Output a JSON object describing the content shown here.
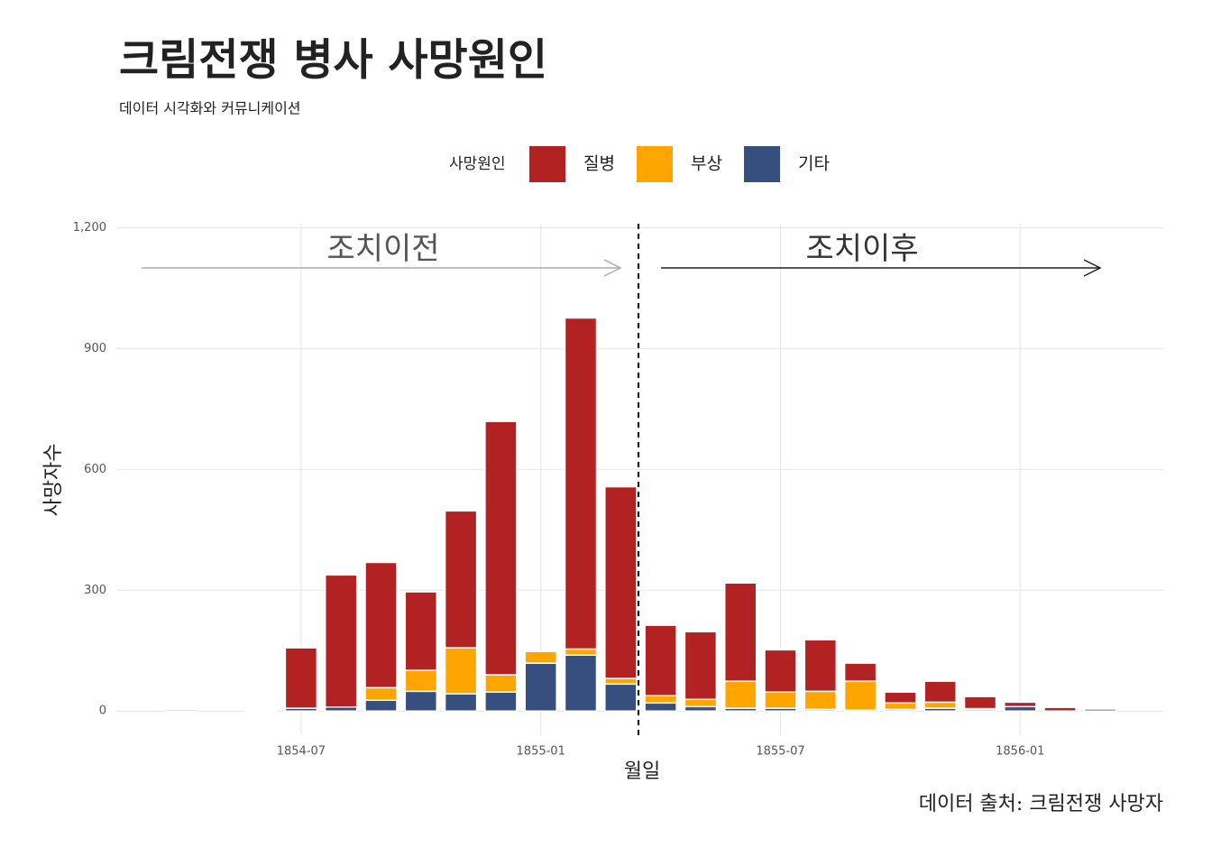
{
  "chart_data": {
    "type": "stacked_bar",
    "title": "크림전쟁 병사 사망원인",
    "subtitle": "데이터 시각화와 커뮤니케이션",
    "legend_title": "사망원인",
    "x_label": "월일",
    "y_label": "사망자수",
    "caption": "데이터 출처: 크림전쟁 사망자",
    "annotations": [
      "조치이전",
      "조치이후"
    ],
    "categories": [
      "1854-04",
      "1854-05",
      "1854-06",
      "1854-07",
      "1854-08",
      "1854-09",
      "1854-10",
      "1854-11",
      "1854-12",
      "1855-01",
      "1855-02",
      "1855-03",
      "1855-04",
      "1855-05",
      "1855-06",
      "1855-07",
      "1855-08",
      "1855-09",
      "1855-10",
      "1855-11",
      "1855-12",
      "1856-01",
      "1856-02",
      "1856-03"
    ],
    "series": [
      {
        "name": "질병",
        "color": "#b22222",
        "values": [
          1,
          0,
          0,
          150,
          328,
          311,
          195,
          340,
          629,
          0,
          822,
          476,
          175,
          168,
          244,
          105,
          128,
          45,
          27,
          52,
          30,
          11,
          9,
          0
        ]
      },
      {
        "name": "부상",
        "color": "#ffa500",
        "values": [
          0,
          0,
          0,
          0,
          0,
          31,
          52,
          114,
          43,
          29,
          15,
          14,
          18,
          18,
          67,
          40,
          45,
          72,
          16,
          15,
          2,
          0,
          0,
          0
        ]
      },
      {
        "name": "기타",
        "color": "#374f7f",
        "values": [
          4,
          0,
          2,
          7,
          10,
          27,
          49,
          43,
          47,
          119,
          139,
          67,
          20,
          11,
          7,
          7,
          4,
          2,
          4,
          7,
          4,
          11,
          0,
          5
        ]
      }
    ],
    "xticks": [
      "1854-07",
      "1855-01",
      "1855-07",
      "1856-01"
    ],
    "ylim": [
      -60,
      1228
    ],
    "yticks": [
      0,
      300,
      600,
      900,
      {
        "value": 1200,
        "label": "1,200"
      }
    ],
    "grid": true
  }
}
